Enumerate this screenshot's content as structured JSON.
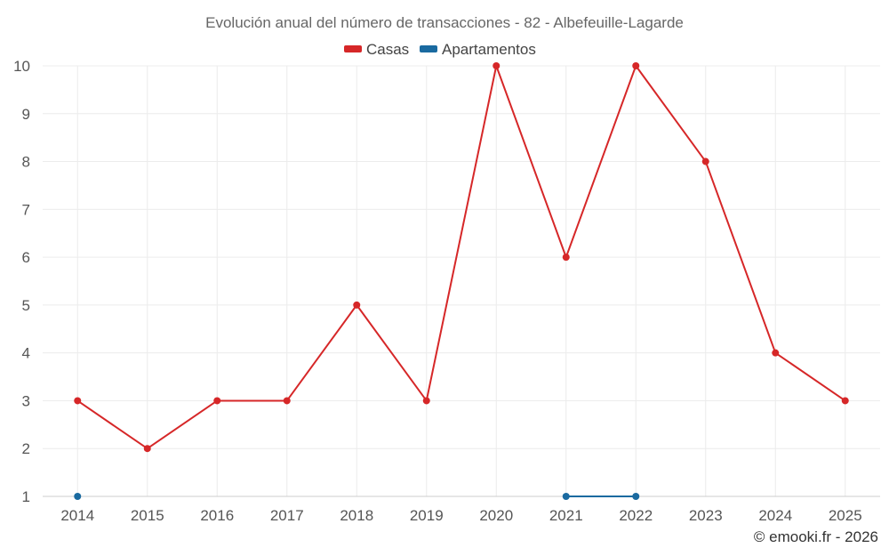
{
  "chart_data": {
    "type": "line",
    "title": "Evolución anual del número de transacciones - 82 - Albefeuille-Lagarde",
    "categories": [
      "2014",
      "2015",
      "2016",
      "2017",
      "2018",
      "2019",
      "2020",
      "2021",
      "2022",
      "2023",
      "2024",
      "2025"
    ],
    "series": [
      {
        "name": "Casas",
        "color": "#d62728",
        "values": [
          3,
          2,
          3,
          3,
          5,
          3,
          10,
          6,
          10,
          8,
          4,
          3
        ]
      },
      {
        "name": "Apartamentos",
        "color": "#1a6aa0",
        "values": [
          1,
          null,
          null,
          null,
          null,
          null,
          null,
          1,
          1,
          null,
          null,
          null
        ]
      }
    ],
    "yticks": [
      "1",
      "2",
      "3",
      "4",
      "5",
      "6",
      "7",
      "8",
      "9",
      "10"
    ],
    "ylim": [
      1,
      10
    ],
    "xlabel": "",
    "ylabel": "",
    "grid": true,
    "legend_position": "top-center"
  },
  "credit": "© emooki.fr - 2026"
}
